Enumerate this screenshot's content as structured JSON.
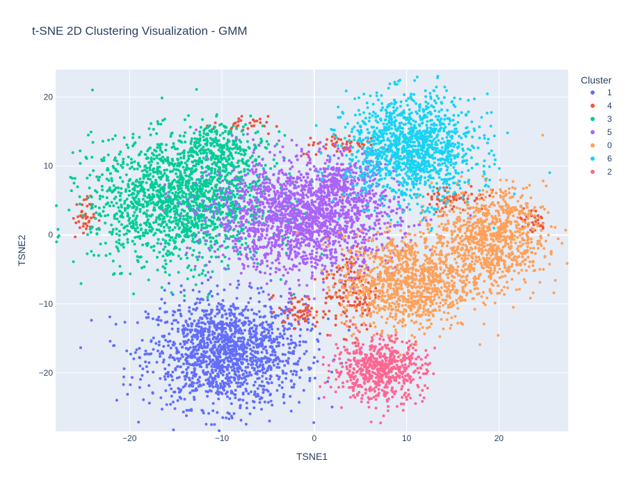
{
  "chart_data": {
    "type": "scatter",
    "title": "t-SNE 2D Clustering Visualization - GMM",
    "xlabel": "TSNE1",
    "ylabel": "TSNE2",
    "xlim": [
      -28,
      27.5
    ],
    "ylim": [
      -28.5,
      24
    ],
    "xticks": [
      -20,
      -10,
      0,
      10,
      20
    ],
    "yticks": [
      -20,
      -10,
      0,
      10,
      20
    ],
    "xtick_labels": [
      "−20",
      "−10",
      "0",
      "10",
      "20"
    ],
    "ytick_labels": [
      "−20",
      "−10",
      "0",
      "10",
      "20"
    ],
    "grid": true,
    "legend": {
      "title": "Cluster",
      "position": "right"
    },
    "colors": {
      "plot_bg": "#e5ecf6",
      "grid": "#ffffff",
      "text": "#2a3f5f"
    },
    "series": [
      {
        "name": "1",
        "color": "#636efa",
        "clusters": [
          {
            "cx": -9.5,
            "cy": -17.0,
            "sx": 4.2,
            "sy": 4.0,
            "n": 1500
          }
        ]
      },
      {
        "name": "4",
        "color": "#ef553b",
        "clusters": [
          {
            "cx": -25.0,
            "cy": 2.5,
            "sx": 0.6,
            "sy": 1.5,
            "n": 40
          },
          {
            "cx": -8.0,
            "cy": 16.0,
            "sx": 1.5,
            "sy": 0.6,
            "n": 30
          },
          {
            "cx": -1.5,
            "cy": -11.0,
            "sx": 1.2,
            "sy": 1.2,
            "n": 60
          },
          {
            "cx": 4.0,
            "cy": -8.0,
            "sx": 1.5,
            "sy": 3.0,
            "n": 140
          },
          {
            "cx": 3.5,
            "cy": 13.0,
            "sx": 2.5,
            "sy": 0.8,
            "n": 60
          },
          {
            "cx": 15.0,
            "cy": 5.5,
            "sx": 1.8,
            "sy": 1.0,
            "n": 60
          },
          {
            "cx": 23.5,
            "cy": 2.0,
            "sx": 0.8,
            "sy": 1.0,
            "n": 30
          }
        ]
      },
      {
        "name": "3",
        "color": "#00cc96",
        "clusters": [
          {
            "cx": -14.5,
            "cy": 5.0,
            "sx": 4.8,
            "sy": 4.5,
            "n": 1700
          },
          {
            "cx": -10.0,
            "cy": 12.5,
            "sx": 2.5,
            "sy": 1.8,
            "n": 250
          }
        ]
      },
      {
        "name": "5",
        "color": "#ab63fa",
        "clusters": [
          {
            "cx": -1.0,
            "cy": 2.5,
            "sx": 5.0,
            "sy": 4.0,
            "n": 1800
          },
          {
            "cx": 3.0,
            "cy": 8.0,
            "sx": 2.0,
            "sy": 2.0,
            "n": 200
          }
        ]
      },
      {
        "name": "0",
        "color": "#ffa15a",
        "clusters": [
          {
            "cx": 19.0,
            "cy": -0.5,
            "sx": 3.0,
            "sy": 3.5,
            "n": 900
          },
          {
            "cx": 10.0,
            "cy": -7.0,
            "sx": 3.5,
            "sy": 3.5,
            "n": 1000
          }
        ]
      },
      {
        "name": "6",
        "color": "#19d3f3",
        "clusters": [
          {
            "cx": 10.5,
            "cy": 12.5,
            "sx": 3.5,
            "sy": 3.8,
            "n": 1300
          }
        ]
      },
      {
        "name": "2",
        "color": "#ff6692",
        "clusters": [
          {
            "cx": 7.0,
            "cy": -19.5,
            "sx": 2.5,
            "sy": 2.3,
            "n": 600
          }
        ]
      }
    ]
  }
}
